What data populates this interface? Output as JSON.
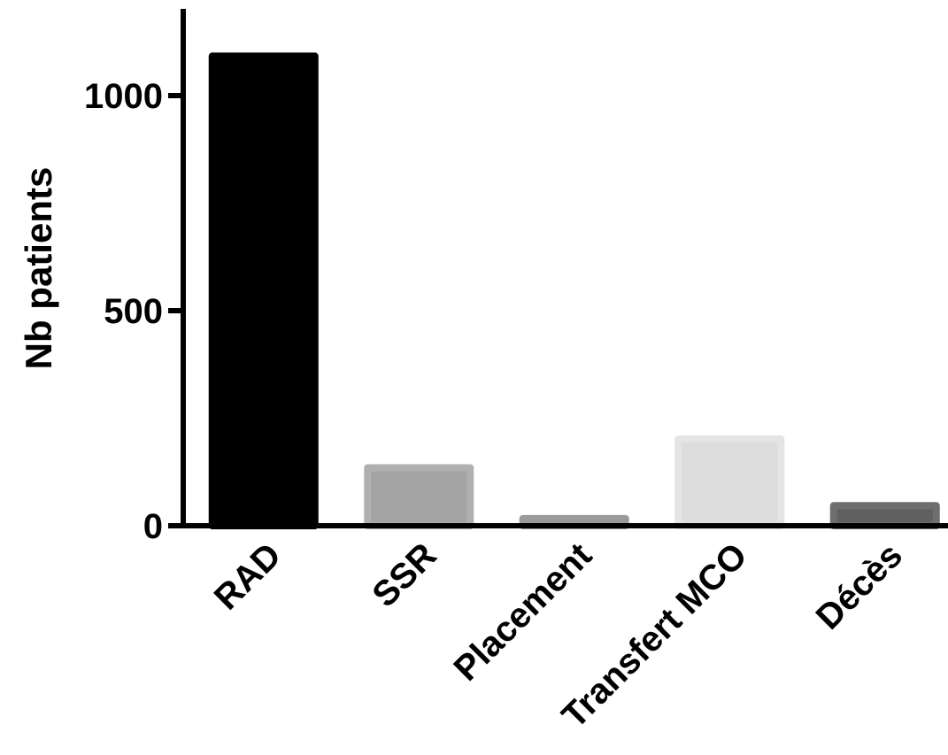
{
  "chart_data": {
    "type": "bar",
    "title": "",
    "xlabel": "",
    "ylabel": "Nb patients",
    "ylim": [
      0,
      1200
    ],
    "yticks": [
      0,
      500,
      1000
    ],
    "ytick_labels": [
      "0",
      "500",
      "1000"
    ],
    "categories": [
      "RAD",
      "SSR",
      "Placement",
      "Transfert MCO",
      "Décès"
    ],
    "values": [
      1100,
      143,
      25,
      210,
      55
    ],
    "grid": false,
    "legend": "none",
    "colors": {
      "fills": [
        "#000000",
        "#a3a3a3",
        "#8f8f8f",
        "#dcdcdc",
        "#606060"
      ],
      "borders": [
        "#000000",
        "#b0b0b0",
        "#9a9a9a",
        "#e4e4e4",
        "#6e6e6e"
      ],
      "axis": "#000000"
    }
  }
}
